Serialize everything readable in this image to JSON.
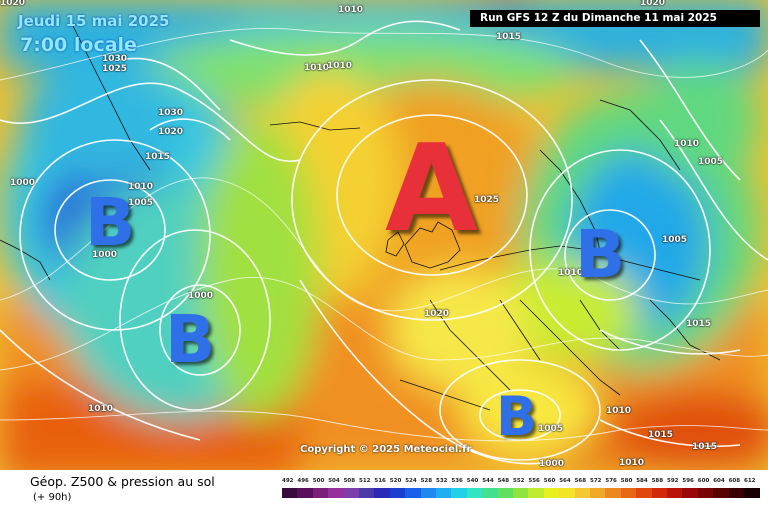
{
  "header": {
    "date_line": "Jeudi 15 mai 2025",
    "time_line": "7:00 locale",
    "run_info": "Run GFS 12 Z du Dimanche 11 mai 2025"
  },
  "legend": {
    "title": "Géop. Z500 & pression au sol",
    "forecast_hour": "(+ 90h)",
    "scale_values": [
      "492",
      "496",
      "500",
      "504",
      "508",
      "512",
      "516",
      "520",
      "524",
      "528",
      "532",
      "536",
      "540",
      "544",
      "548",
      "552",
      "556",
      "560",
      "564",
      "568",
      "572",
      "576",
      "580",
      "584",
      "588",
      "592",
      "596",
      "600",
      "604",
      "608",
      "612"
    ],
    "scale_colors": [
      "#3a0a3a",
      "#5a0f5a",
      "#7a1f7a",
      "#96309a",
      "#7c3fa8",
      "#4a3aa8",
      "#2a2ab8",
      "#1a40d0",
      "#1a60e8",
      "#1e8af0",
      "#20aef0",
      "#22d0e8",
      "#30e4c4",
      "#40e090",
      "#60e060",
      "#90e440",
      "#c0ec30",
      "#e8f020",
      "#f4e428",
      "#f4c830",
      "#f0a828",
      "#ec8820",
      "#e86818",
      "#e04810",
      "#d02808",
      "#b81408",
      "#980808",
      "#780404",
      "#580202",
      "#380000",
      "#1a0000"
    ]
  },
  "copyright": "Copyright © 2025 Meteociel.fr",
  "pressure_centers": [
    {
      "label": "A",
      "type": "high"
    },
    {
      "label": "B",
      "type": "low"
    },
    {
      "label": "B",
      "type": "low"
    },
    {
      "label": "B",
      "type": "low"
    },
    {
      "label": "B",
      "type": "low"
    }
  ],
  "isobar_labels": [
    "1010",
    "1015",
    "1030",
    "1025",
    "1010",
    "1010",
    "1030",
    "1020",
    "1015",
    "1010",
    "1000",
    "1005",
    "1000",
    "1000",
    "1025",
    "1020",
    "1010",
    "1005",
    "1010",
    "1005",
    "1015",
    "1010",
    "1000",
    "1005",
    "1010",
    "1015",
    "1015",
    "1010",
    "1020",
    "1020"
  ],
  "colors": {
    "low_letter": "#2f6fe8",
    "high_letter": "#e8303a",
    "run_box": "#000000"
  }
}
